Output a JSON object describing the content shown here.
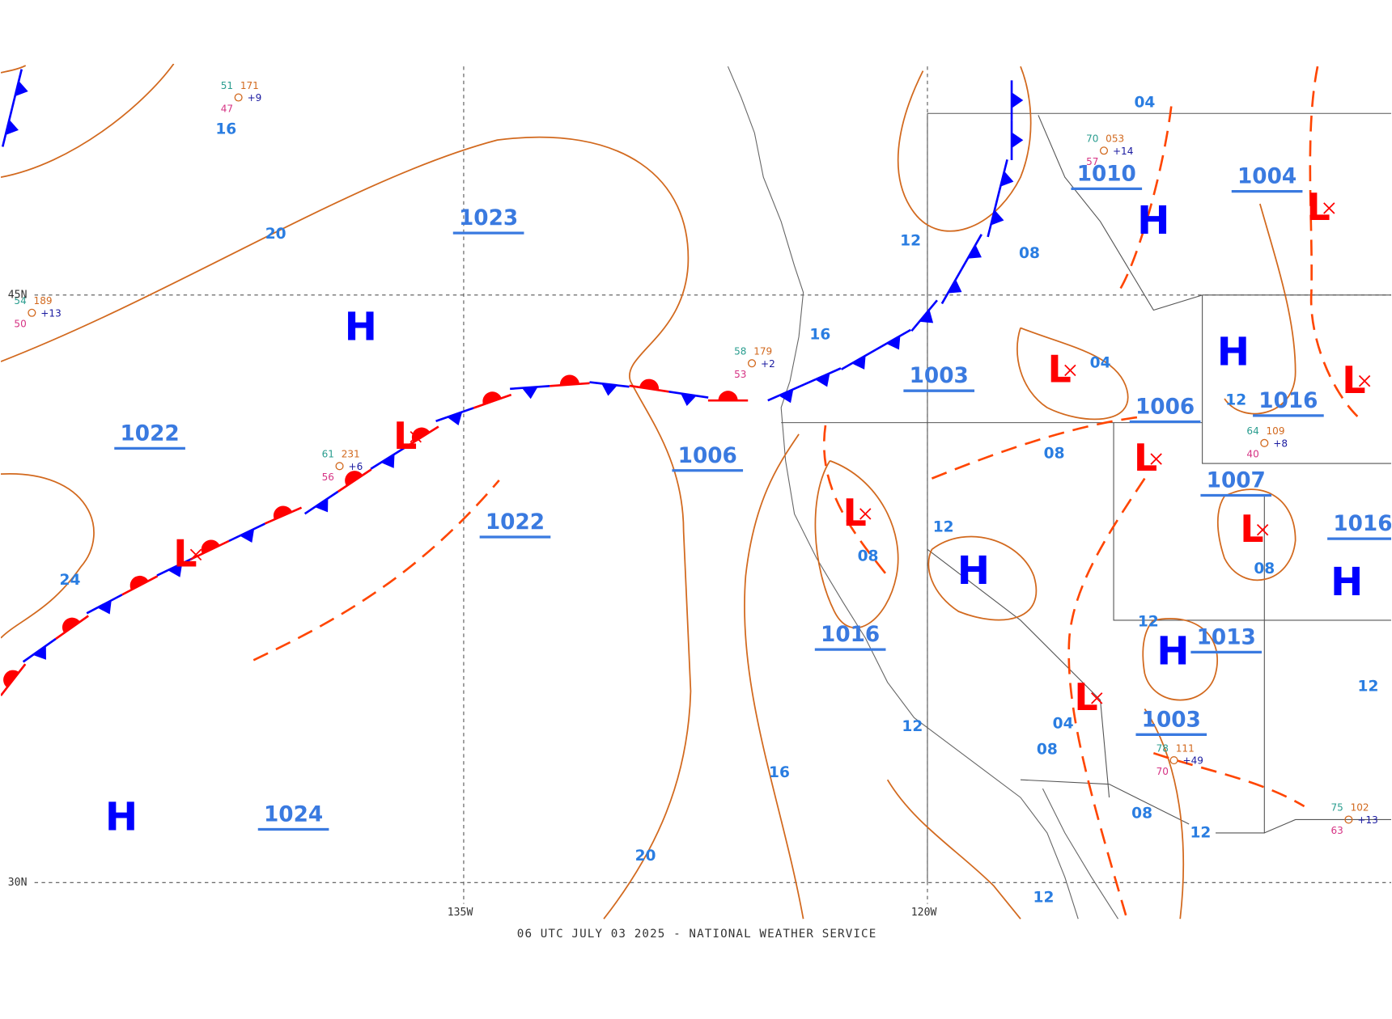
{
  "footer": "06 UTC JULY 03 2025 - NATIONAL WEATHER SERVICE",
  "latitude_labels": [
    "45N",
    "30N"
  ],
  "longitude_labels": [
    "135W",
    "120W"
  ],
  "highs": [
    "H",
    "H",
    "H",
    "H",
    "H",
    "H",
    "H"
  ],
  "lows": [
    "L",
    "L",
    "L",
    "L",
    "L",
    "L",
    "L",
    "L",
    "L"
  ],
  "center_pressures": [
    "1023",
    "1022",
    "1022",
    "1006",
    "1024",
    "1016",
    "1003",
    "1010",
    "1004",
    "1006",
    "1016",
    "1007",
    "1013",
    "1003",
    "1016"
  ],
  "isobar_labels": [
    "16",
    "20",
    "24",
    "16",
    "20",
    "12",
    "08",
    "16",
    "04",
    "12",
    "08",
    "12",
    "08",
    "08",
    "12",
    "04",
    "12",
    "08",
    "08",
    "12",
    "12",
    "12",
    "04"
  ],
  "stations": [
    {
      "temp": "54",
      "pressure": "189",
      "tendency": "+13",
      "dewpoint": "50"
    },
    {
      "temp": "51",
      "pressure": "171",
      "tendency": "+9",
      "dewpoint": "47"
    },
    {
      "temp": "61",
      "pressure": "231",
      "tendency": "+6",
      "dewpoint": "56"
    },
    {
      "temp": "58",
      "pressure": "179",
      "tendency": "+2",
      "dewpoint": "53"
    },
    {
      "temp": "70",
      "pressure": "053",
      "tendency": "+14",
      "dewpoint": "57"
    },
    {
      "temp": "64",
      "pressure": "109",
      "tendency": "+8",
      "dewpoint": "40"
    },
    {
      "temp": "75",
      "pressure": "102",
      "tendency": "+13",
      "dewpoint": "63"
    },
    {
      "temp": "78",
      "pressure": "111",
      "tendency": "+49",
      "dewpoint": "70"
    }
  ]
}
